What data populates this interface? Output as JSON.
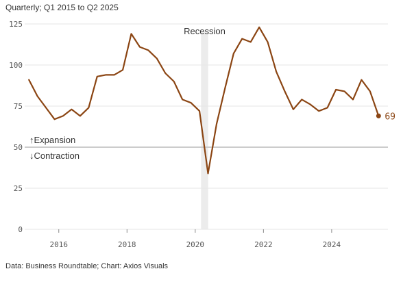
{
  "subtitle": "Quarterly; Q1 2015 to Q2 2025",
  "source": "Data: Business Roundtable; Chart: Axios Visuals",
  "colors": {
    "line": "#8B4513",
    "grid": "#e6e6e6",
    "threshold": "#cccccc",
    "recession_band": "#ececec"
  },
  "chart_data": {
    "type": "line",
    "subtitle": "Quarterly; Q1 2015 to Q2 2025",
    "ylim": [
      0,
      125
    ],
    "yticks": [
      0,
      25,
      50,
      75,
      100,
      125
    ],
    "xlim": [
      2015.0,
      2025.65
    ],
    "xticks": [
      {
        "value": 2016,
        "label": "2016"
      },
      {
        "value": 2018,
        "label": "2018"
      },
      {
        "value": 2020,
        "label": "2020"
      },
      {
        "value": 2022,
        "label": "2022"
      },
      {
        "value": 2024,
        "label": "2024"
      }
    ],
    "grid": true,
    "threshold": {
      "value": 50,
      "above_label": "↑Expansion",
      "below_label": "↓Contraction"
    },
    "recession": {
      "label": "Recession",
      "start": 2020.17,
      "end": 2020.38
    },
    "end_label": "69",
    "series": [
      {
        "x": [
          2015.125,
          2015.375,
          2015.625,
          2015.875,
          2016.125,
          2016.375,
          2016.625,
          2016.875,
          2017.125,
          2017.375,
          2017.625,
          2017.875,
          2018.125,
          2018.375,
          2018.625,
          2018.875,
          2019.125,
          2019.375,
          2019.625,
          2019.875,
          2020.125,
          2020.375,
          2020.625,
          2020.875,
          2021.125,
          2021.375,
          2021.625,
          2021.875,
          2022.125,
          2022.375,
          2022.625,
          2022.875,
          2023.125,
          2023.375,
          2023.625,
          2023.875,
          2024.125,
          2024.375,
          2024.625,
          2024.875,
          2025.125,
          2025.375
        ],
        "values": [
          91,
          81,
          74,
          67,
          69,
          73,
          69,
          74,
          93,
          94,
          94,
          97,
          119,
          111,
          109,
          104,
          95,
          90,
          79,
          77,
          72,
          34,
          64,
          86,
          107,
          116,
          114,
          123,
          114,
          96,
          84,
          73,
          79,
          76,
          72,
          74,
          85,
          84,
          79,
          91,
          84,
          69
        ]
      }
    ]
  }
}
